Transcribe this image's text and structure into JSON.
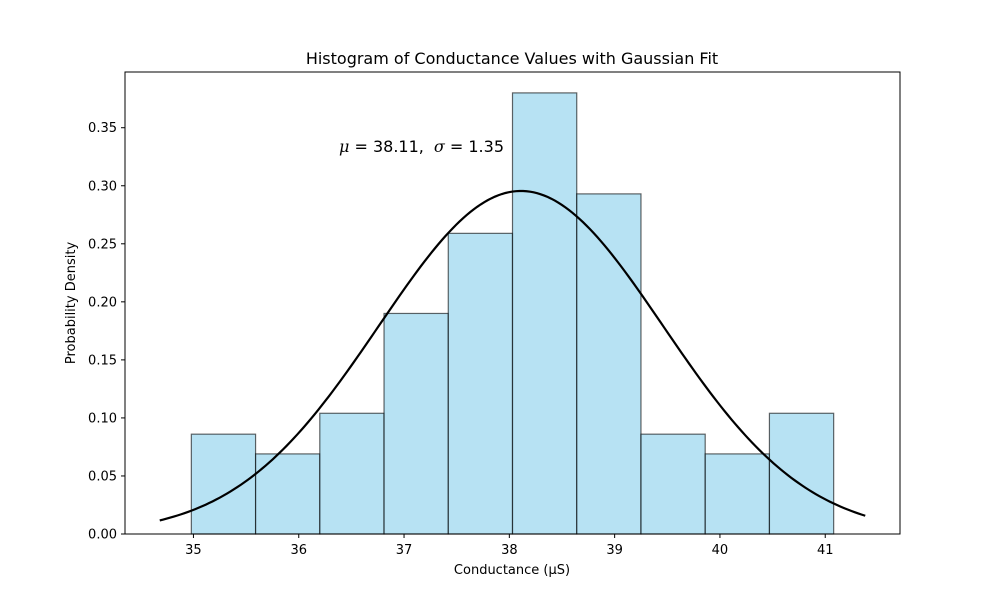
{
  "chart_data": {
    "type": "bar",
    "title": "Histogram of Conductance Values with Gaussian Fit",
    "xlabel": "Conductance (µS)",
    "ylabel": "Probability Density",
    "xlim": [
      34.35,
      41.71
    ],
    "ylim": [
      0,
      0.398
    ],
    "xticks": [
      35,
      36,
      37,
      38,
      39,
      40,
      41
    ],
    "yticks": [
      0.0,
      0.05,
      0.1,
      0.15,
      0.2,
      0.25,
      0.3,
      0.35
    ],
    "bins": [
      {
        "x0": 34.98,
        "x1": 35.59,
        "value": 0.086
      },
      {
        "x0": 35.59,
        "x1": 36.2,
        "value": 0.069
      },
      {
        "x0": 36.2,
        "x1": 36.81,
        "value": 0.104
      },
      {
        "x0": 36.81,
        "x1": 37.42,
        "value": 0.19
      },
      {
        "x0": 37.42,
        "x1": 38.03,
        "value": 0.259
      },
      {
        "x0": 38.03,
        "x1": 38.64,
        "value": 0.38
      },
      {
        "x0": 38.64,
        "x1": 39.25,
        "value": 0.293
      },
      {
        "x0": 39.25,
        "x1": 39.86,
        "value": 0.086
      },
      {
        "x0": 39.86,
        "x1": 40.47,
        "value": 0.069
      },
      {
        "x0": 40.47,
        "x1": 41.08,
        "value": 0.104
      }
    ],
    "fit": {
      "type": "gaussian",
      "mu": 38.11,
      "sigma": 1.35,
      "x_range": [
        34.68,
        41.38
      ]
    },
    "annotation": {
      "mu_sym": "μ",
      "sigma_sym": "σ",
      "eq": " = ",
      "mu_val": "38.11,",
      "sigma_val": "1.35"
    },
    "colors": {
      "bar_fill": "#87ceeb",
      "bar_edge": "#000000",
      "fit_line": "#000000"
    },
    "grid": false
  }
}
